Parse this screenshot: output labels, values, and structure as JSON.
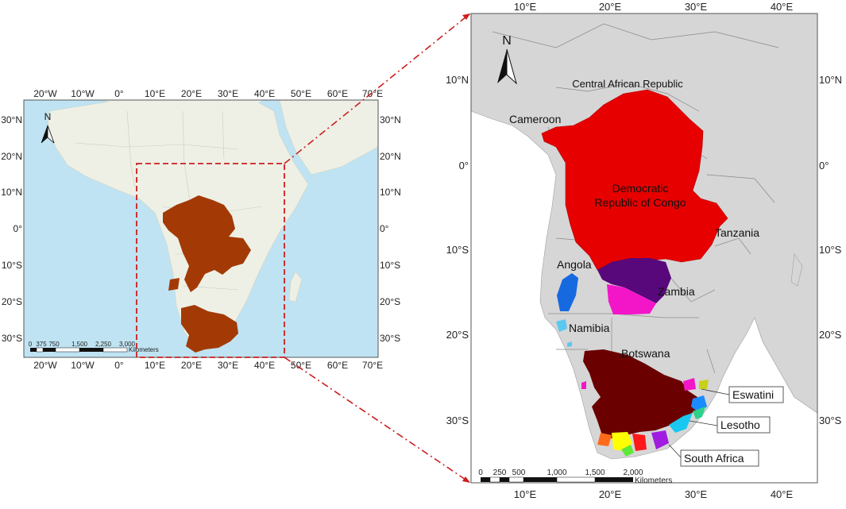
{
  "left_map": {
    "top_lon_labels": [
      "20°W",
      "10°W",
      "0°",
      "10°E",
      "20°E",
      "30°E",
      "40°E",
      "50°E",
      "60°E",
      "70°E"
    ],
    "bottom_lon_labels": [
      "20°W",
      "10°W",
      "0°",
      "10°E",
      "20°E",
      "30°E",
      "40°E",
      "50°E",
      "60°E",
      "70°E"
    ],
    "left_lat_labels": [
      "30°N",
      "20°N",
      "10°N",
      "0°",
      "10°S",
      "20°S",
      "30°S"
    ],
    "right_lat_labels": [
      "30°N",
      "20°N",
      "10°N",
      "0°",
      "10°S",
      "20°S",
      "30°S"
    ],
    "north_label": "N",
    "scale_labels": [
      "0",
      "375",
      "750",
      "1,500",
      "2,250",
      "3,000"
    ],
    "scale_unit": "Kilometers",
    "colors": {
      "ocean": "#bfe3f2",
      "land": "#eef0e6",
      "study_area": "#a33a05",
      "frame": "#cc1f1f"
    }
  },
  "right_map": {
    "top_lon_labels": [
      "10°E",
      "20°E",
      "30°E",
      "40°E"
    ],
    "bottom_lon_labels": [
      "10°E",
      "20°E",
      "30°E",
      "40°E"
    ],
    "left_lat_labels": [
      "10°N",
      "0°",
      "10°S",
      "20°S",
      "30°S"
    ],
    "right_lat_labels": [
      "10°N",
      "0°",
      "10°S",
      "20°S",
      "30°S"
    ],
    "north_label": "N",
    "countries": {
      "car": "Central African Republic",
      "cameroon": "Cameroon",
      "drc_line1": "Democratic",
      "drc_line2": "Republic of Congo",
      "tanzania": "Tanzania",
      "angola": "Angola",
      "zambia": "Zambia",
      "namibia": "Namibia",
      "botswana": "Botswana",
      "eswatini": "Eswatini",
      "lesotho": "Lesotho",
      "south_africa": "South Africa"
    },
    "scale_labels": [
      "0",
      "250",
      "500",
      "1,000",
      "1,500",
      "2,000"
    ],
    "scale_unit": "Kilometers",
    "colors": {
      "ocean": "#ffffff",
      "land": "#d6d6d6",
      "congo": "#e60000",
      "zambia_purple": "#58087a",
      "zambia_pink": "#f316c9",
      "angola": "#1769e0",
      "namibia": "#5bc8f0",
      "orange_basin": "#6b0000",
      "lesotho_cyan": "#19c8f0",
      "eastern_blue": "#1a8cff",
      "yellow": "#ffff00",
      "lime": "#5ee83a",
      "violet": "#a01ce0",
      "orange": "#ff6b1a",
      "red": "#ff1a1a",
      "green": "#2ed18a"
    }
  }
}
